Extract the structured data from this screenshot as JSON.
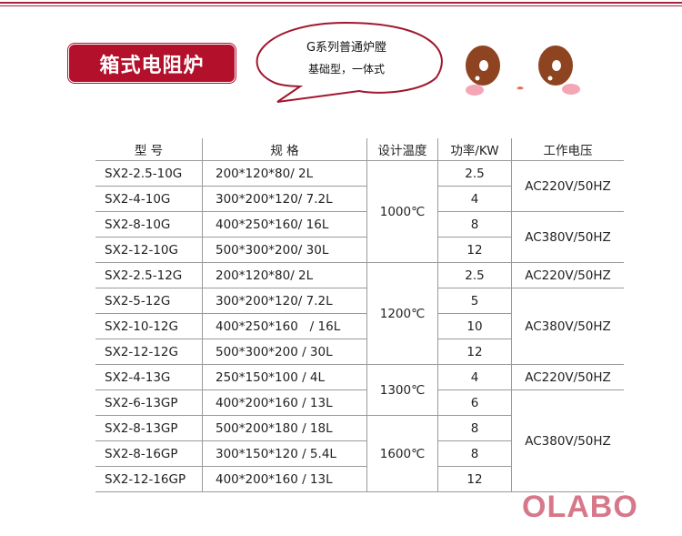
{
  "title": "箱式电阻炉",
  "bubble": {
    "line1": "G系列普通炉膛",
    "line2": "基础型，一体式"
  },
  "table": {
    "headers": [
      "型 号",
      "规 格",
      "设计温度",
      "功率/KW",
      "工作电压"
    ],
    "rows": [
      {
        "model": "SX2-2.5-10G",
        "spec": "200*120*80/ 2L",
        "power": "2.5"
      },
      {
        "model": "SX2-4-10G",
        "spec": "300*200*120/ 7.2L",
        "power": "4"
      },
      {
        "model": "SX2-8-10G",
        "spec": "400*250*160/ 16L",
        "power": "8"
      },
      {
        "model": "SX2-12-10G",
        "spec": "500*300*200/ 30L",
        "power": "12"
      },
      {
        "model": "SX2-2.5-12G",
        "spec": "200*120*80/ 2L",
        "power": "2.5"
      },
      {
        "model": "SX2-5-12G",
        "spec": "300*200*120/ 7.2L",
        "power": "5"
      },
      {
        "model": "SX2-10-12G",
        "spec": "400*250*160   / 16L",
        "power": "10"
      },
      {
        "model": "SX2-12-12G",
        "spec": "500*300*200 / 30L",
        "power": "12"
      },
      {
        "model": "SX2-4-13G",
        "spec": "250*150*100 / 4L",
        "power": "4"
      },
      {
        "model": "SX2-6-13GP",
        "spec": "400*200*160 / 13L",
        "power": "6"
      },
      {
        "model": "SX2-8-13GP",
        "spec": "500*200*180 / 18L",
        "power": "8"
      },
      {
        "model": "SX2-8-16GP",
        "spec": "300*150*120 / 5.4L",
        "power": "8"
      },
      {
        "model": "SX2-12-16GP",
        "spec": "400*200*160 / 13L",
        "power": "12"
      }
    ],
    "temps": [
      "1000℃",
      "1200℃",
      "1300℃",
      "1600℃"
    ],
    "voltages": [
      "AC220V/50HZ",
      "AC380V/50HZ",
      "AC220V/50HZ",
      "AC380V/50HZ",
      "AC220V/50HZ",
      "AC380V/50HZ"
    ]
  },
  "logo": "OLABO",
  "colors": {
    "brand": "#b3102b",
    "logo": "#d7788a"
  }
}
